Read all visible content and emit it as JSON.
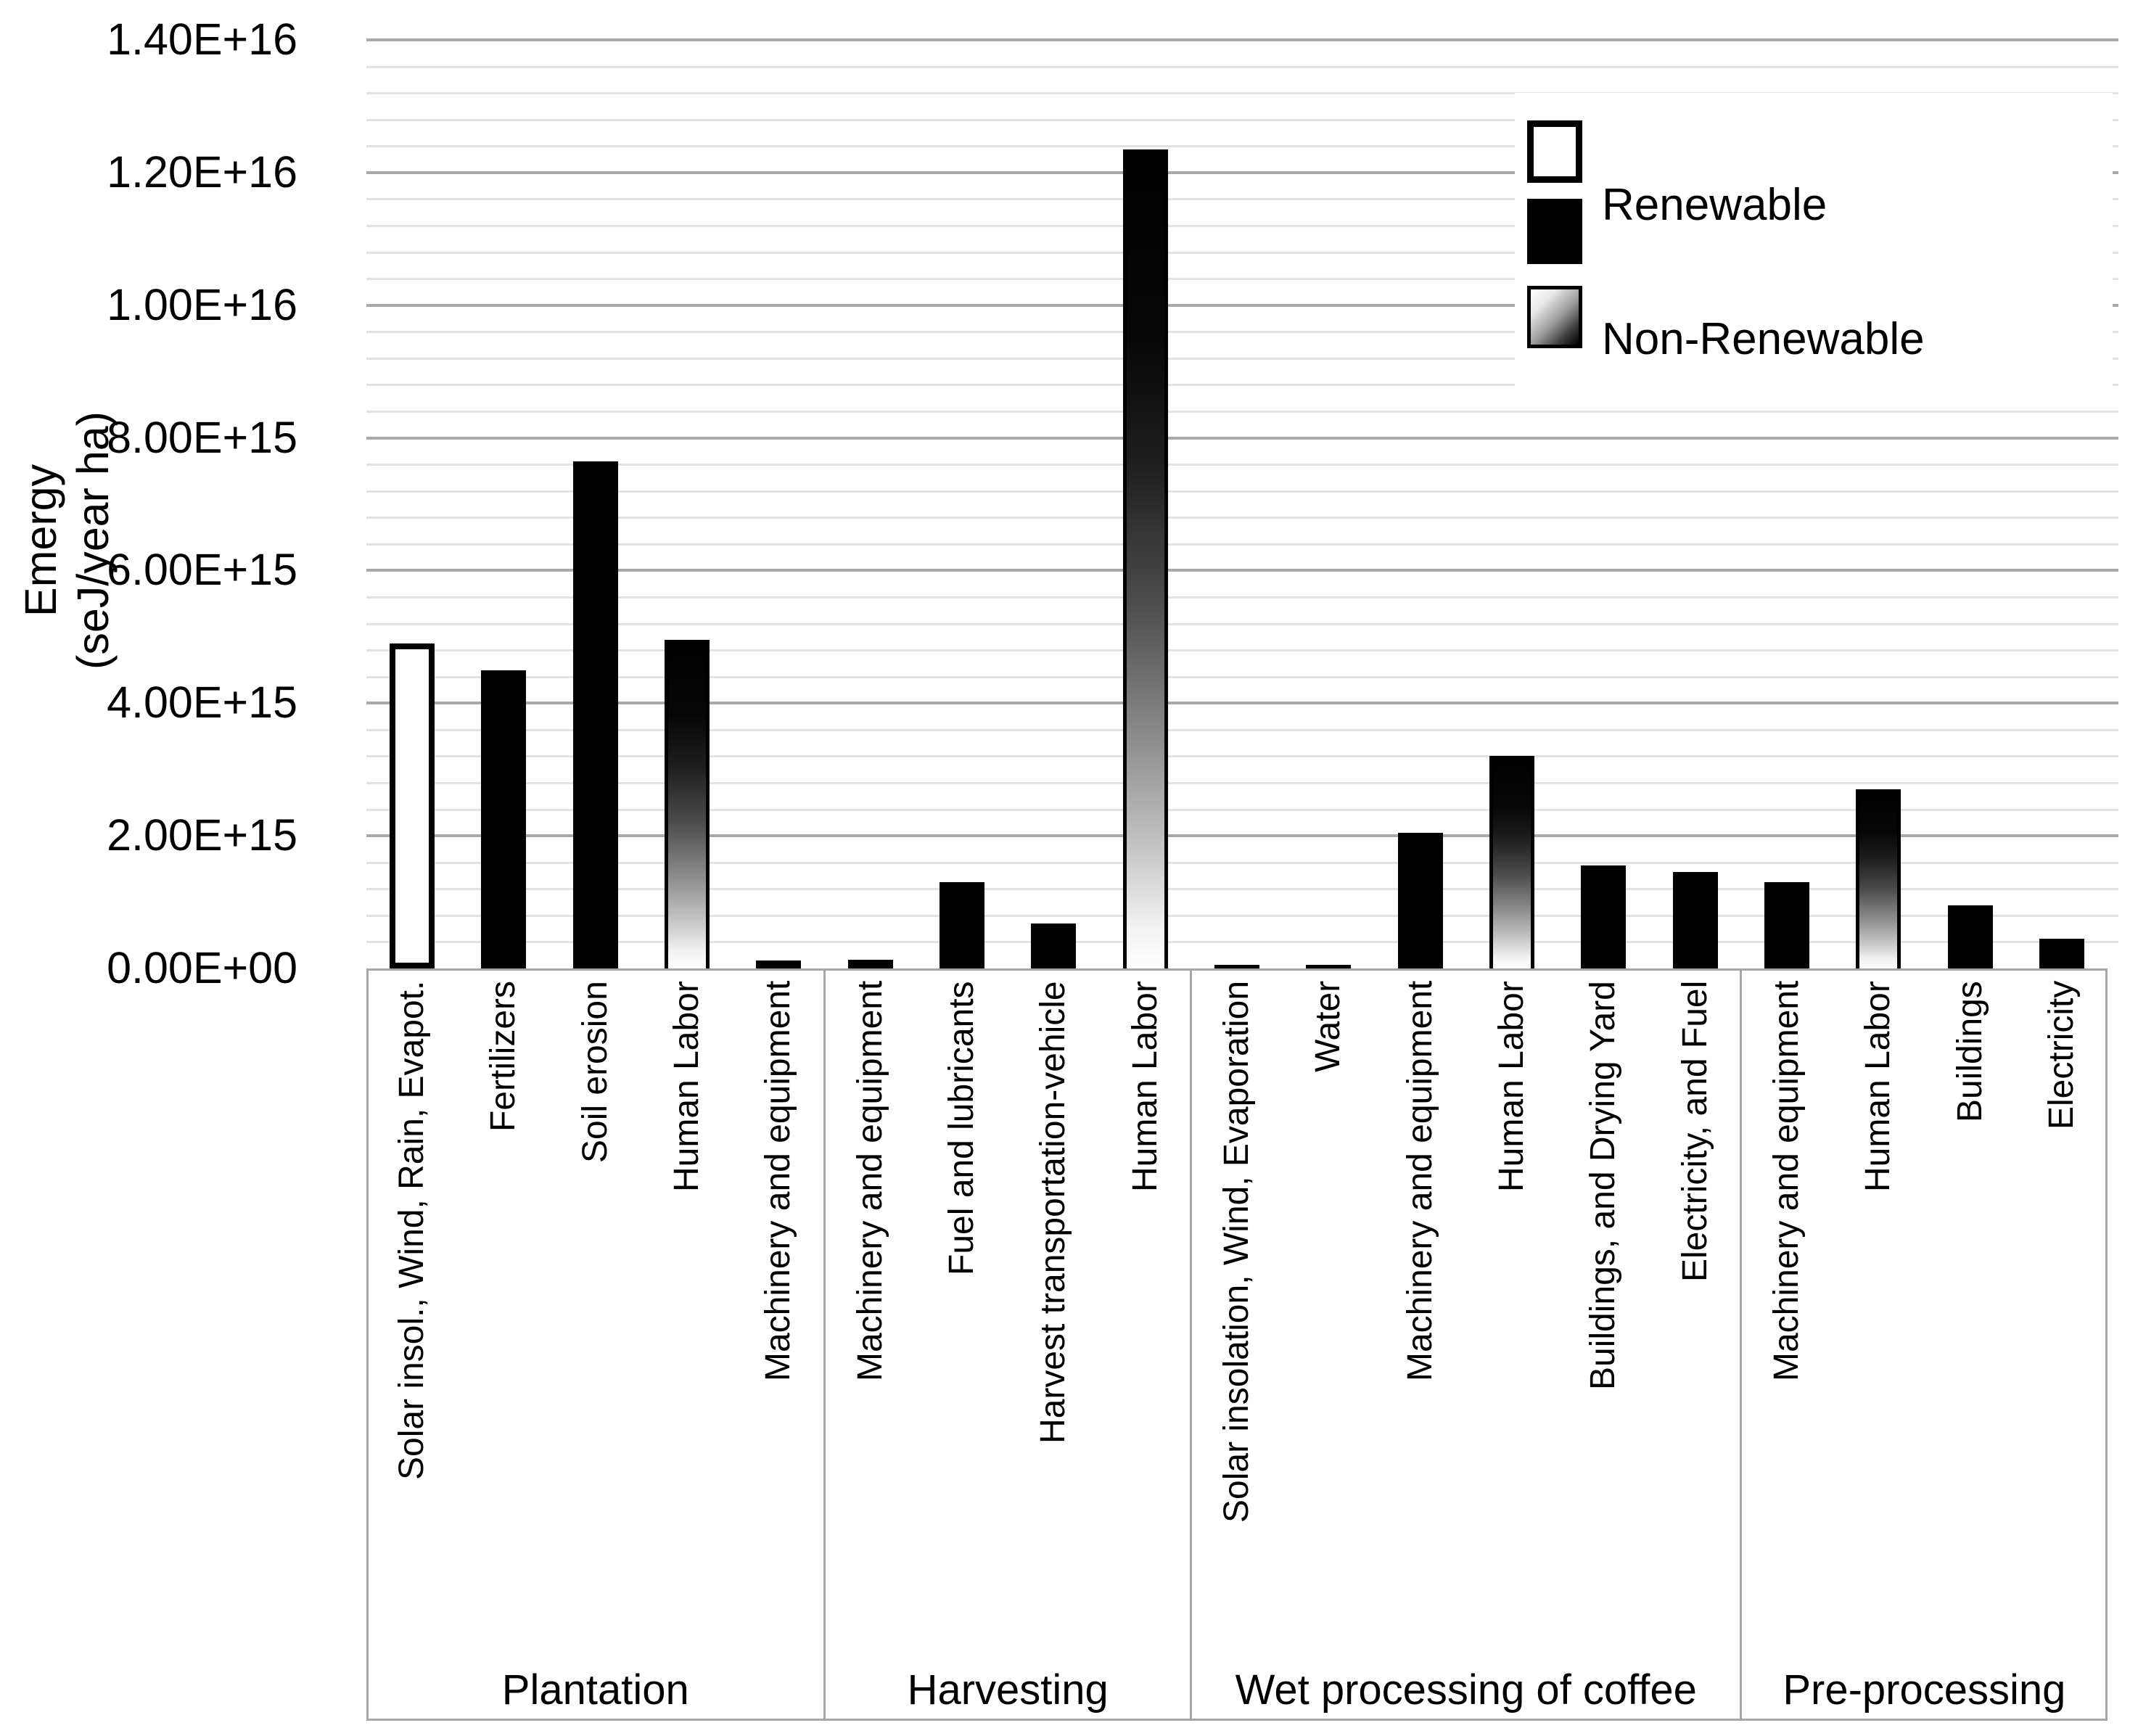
{
  "figure": {
    "y_axis": {
      "title": "Emergy (seJ/year ha)",
      "title_line1": "Emergy",
      "title_line2": "(seJ/year ha)"
    }
  },
  "chart_data": {
    "type": "bar",
    "title": "",
    "xlabel": "",
    "ylabel": "Emergy (seJ/year ha)",
    "ylim": [
      0,
      1.4e+16
    ],
    "grid": "on",
    "minor_grid_step": 400000000000000.0,
    "major_grid_step": 2000000000000000.0,
    "legend_position": "upper right",
    "y_ticks": [
      {
        "value": 0,
        "label": "0.00E+00"
      },
      {
        "value": 2000000000000000.0,
        "label": "2.00E+15"
      },
      {
        "value": 4000000000000000.0,
        "label": "4.00E+15"
      },
      {
        "value": 6000000000000000.0,
        "label": "6.00E+15"
      },
      {
        "value": 8000000000000000.0,
        "label": "8.00E+15"
      },
      {
        "value": 1e+16,
        "label": "1.00E+16"
      },
      {
        "value": 1.2e+16,
        "label": "1.20E+16"
      },
      {
        "value": 1.4e+16,
        "label": "1.40E+16"
      }
    ],
    "legend": [
      {
        "label": "",
        "style": "white"
      },
      {
        "label": "Renewable",
        "style": "black"
      },
      {
        "label": "Non-Renewable",
        "style": "gradient"
      }
    ],
    "groups": [
      {
        "label": "Plantation",
        "bars": [
          {
            "label": "Solar insol., Wind, Rain, Evapot.",
            "value": 4900000000000000.0,
            "style": "white"
          },
          {
            "label": "Fertilizers",
            "value": 4500000000000000.0,
            "style": "black"
          },
          {
            "label": "Soil erosion",
            "value": 7650000000000000.0,
            "style": "black"
          },
          {
            "label": "Human Labor",
            "value": 4950000000000000.0,
            "style": "gradient"
          },
          {
            "label": "Machinery and equipment",
            "value": 120000000000000.0,
            "style": "black"
          }
        ]
      },
      {
        "label": "Harvesting",
        "bars": [
          {
            "label": "Machinery and equipment",
            "value": 130000000000000.0,
            "style": "black"
          },
          {
            "label": "Fuel and lubricants",
            "value": 1300000000000000.0,
            "style": "black"
          },
          {
            "label": "Harvest transportation-vehicle",
            "value": 680000000000000.0,
            "style": "black"
          },
          {
            "label": "Human Labor",
            "value": 1.235e+16,
            "style": "gradient"
          }
        ]
      },
      {
        "label": "Wet processing of coffee",
        "bars": [
          {
            "label": "Solar insolation, Wind, Evaporation",
            "value": 50000000000000.0,
            "style": "black"
          },
          {
            "label": "Water",
            "value": 60000000000000.0,
            "style": "black"
          },
          {
            "label": "Machinery and equipment",
            "value": 2050000000000000.0,
            "style": "black"
          },
          {
            "label": "Human Labor",
            "value": 3200000000000000.0,
            "style": "gradient"
          },
          {
            "label": "Buildings, and Drying Yard",
            "value": 1550000000000000.0,
            "style": "black"
          },
          {
            "label": "Electricity, and Fuel",
            "value": 1450000000000000.0,
            "style": "black"
          }
        ]
      },
      {
        "label": "Pre-processing",
        "bars": [
          {
            "label": "Machinery and equipment",
            "value": 1300000000000000.0,
            "style": "black"
          },
          {
            "label": "Human Labor",
            "value": 2700000000000000.0,
            "style": "gradient"
          },
          {
            "label": "Buildings",
            "value": 950000000000000.0,
            "style": "black"
          },
          {
            "label": "Electricity",
            "value": 450000000000000.0,
            "style": "black"
          }
        ]
      }
    ],
    "colors": {
      "bar_black": "#000000",
      "bar_white": "#ffffff",
      "minor_gridline": "#e2e2e2",
      "major_gridline": "#a9a9a9",
      "category_box_border": "#a6a6a6",
      "text": "#000000"
    }
  }
}
